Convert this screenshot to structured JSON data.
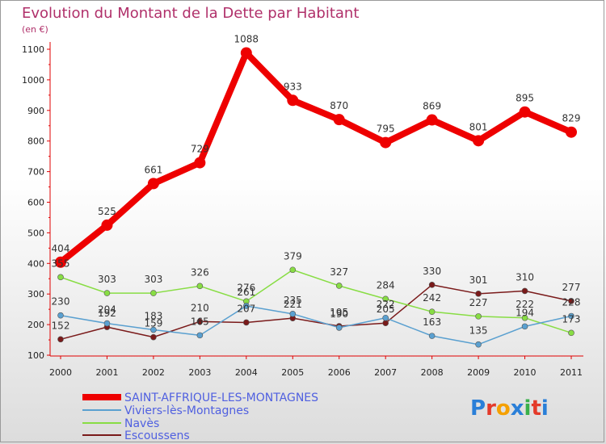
{
  "chart_data": {
    "type": "line",
    "title": "Evolution du Montant de la Dette par Habitant",
    "subtitle": "(en €)",
    "x": [
      "2000",
      "2001",
      "2002",
      "2003",
      "2004",
      "2005",
      "2006",
      "2007",
      "2008",
      "2009",
      "2010",
      "2011"
    ],
    "ylim": [
      100,
      1100
    ],
    "yticks": [
      100,
      200,
      300,
      400,
      500,
      600,
      700,
      800,
      900,
      1000,
      1100
    ],
    "grid": false,
    "legend_position": "bottom-left",
    "series": [
      {
        "name": "SAINT-AFFRIQUE-LES-MONTAGNES",
        "color": "#ee0000",
        "values": [
          404,
          525,
          661,
          729,
          1088,
          933,
          870,
          795,
          869,
          801,
          895,
          829
        ]
      },
      {
        "name": "Viviers-lès-Montagnes",
        "color": "#5aa0d0",
        "values": [
          230,
          204,
          183,
          165,
          261,
          235,
          190,
          222,
          163,
          135,
          194,
          228
        ]
      },
      {
        "name": "Navès",
        "color": "#88dd44",
        "values": [
          355,
          303,
          303,
          326,
          276,
          379,
          327,
          284,
          242,
          227,
          222,
          173
        ]
      },
      {
        "name": "Escoussens",
        "color": "#7a1a1a",
        "values": [
          152,
          192,
          159,
          210,
          207,
          221,
          195,
          205,
          330,
          301,
          310,
          277
        ]
      }
    ]
  },
  "logo": {
    "text": "Proxiti",
    "colors": [
      "#2a7fd8",
      "#e43a2a",
      "#f5a000",
      "#2a7fd8",
      "#3ab04a",
      "#e43a2a",
      "#2a7fd8"
    ]
  }
}
